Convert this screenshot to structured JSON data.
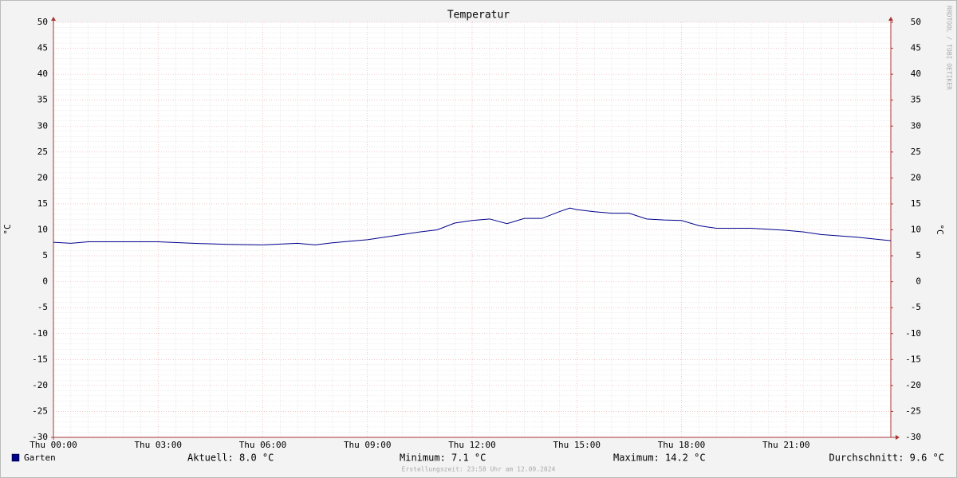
{
  "chart_data": {
    "type": "line",
    "title": "Temperatur",
    "y_label": "°C",
    "y2_label": "°C",
    "x": [
      0,
      0.5,
      1,
      2,
      3,
      4,
      5,
      6,
      7,
      7.5,
      8,
      9,
      10,
      10.5,
      11,
      11.5,
      12,
      12.5,
      13,
      13.5,
      14,
      14.5,
      14.8,
      15,
      15.5,
      16,
      16.5,
      17,
      17.5,
      18,
      18.5,
      19,
      20,
      21,
      21.5,
      22,
      23,
      24
    ],
    "series": [
      {
        "name": "Garten",
        "color": "#00008b",
        "values": [
          7.6,
          7.4,
          7.7,
          7.7,
          7.7,
          7.4,
          7.2,
          7.1,
          7.4,
          7.1,
          7.5,
          8.1,
          9.1,
          9.6,
          10.0,
          11.3,
          11.8,
          12.1,
          11.2,
          12.2,
          12.2,
          13.5,
          14.2,
          13.9,
          13.5,
          13.2,
          13.2,
          12.1,
          11.9,
          11.8,
          10.8,
          10.3,
          10.3,
          9.9,
          9.6,
          9.1,
          8.6,
          7.9
        ]
      }
    ],
    "xlim": [
      0,
      24
    ],
    "xticks": [
      {
        "value": 0,
        "label": "Thu 00:00"
      },
      {
        "value": 3,
        "label": "Thu 03:00"
      },
      {
        "value": 6,
        "label": "Thu 06:00"
      },
      {
        "value": 9,
        "label": "Thu 09:00"
      },
      {
        "value": 12,
        "label": "Thu 12:00"
      },
      {
        "value": 15,
        "label": "Thu 15:00"
      },
      {
        "value": 18,
        "label": "Thu 18:00"
      },
      {
        "value": 21,
        "label": "Thu 21:00"
      }
    ],
    "ylim": [
      -30,
      50
    ],
    "yticks": [
      -30,
      -25,
      -20,
      -15,
      -10,
      -5,
      0,
      5,
      10,
      15,
      20,
      25,
      30,
      35,
      40,
      45,
      50
    ],
    "y2lim": [
      -30,
      50
    ],
    "y2ticks": [
      -30,
      -25,
      -20,
      -15,
      -10,
      -5,
      0,
      5,
      10,
      15,
      20,
      25,
      30,
      35,
      40,
      45,
      50
    ],
    "grid": true,
    "legend_stats": [
      "Aktuell: 8.0 °C",
      "Minimum: 7.1 °C",
      "Maximum: 14.2 °C",
      "Durchschnitt: 9.6 °C"
    ],
    "footer": "Erstellungszeit: 23:58 Uhr am 12.09.2024",
    "watermark": "RRDTOOL / TOBI OETIKER"
  }
}
